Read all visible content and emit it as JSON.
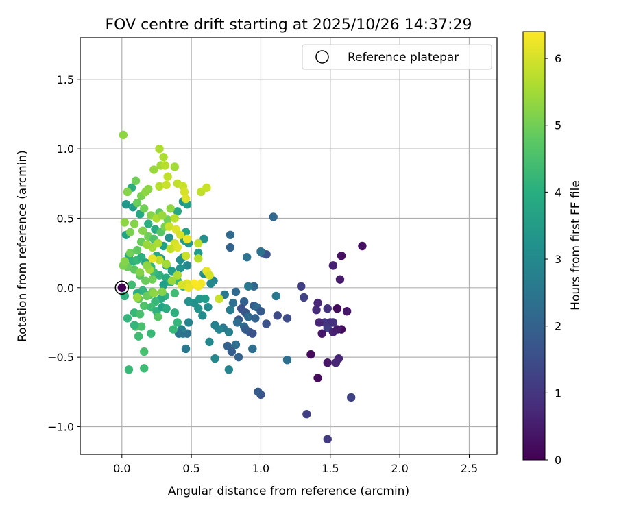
{
  "chart_data": {
    "type": "scatter",
    "title": "FOV centre drift starting at 2025/10/26 14:37:29",
    "xlabel": "Angular distance from reference (arcmin)",
    "ylabel": "Rotation from reference (arcmin)",
    "xlim": [
      -0.3,
      2.7
    ],
    "ylim": [
      -1.2,
      1.8
    ],
    "xticks": [
      0.0,
      0.5,
      1.0,
      1.5,
      2.0,
      2.5
    ],
    "xtick_labels": [
      "0.0",
      "0.5",
      "1.0",
      "1.5",
      "2.0",
      "2.5"
    ],
    "yticks": [
      -1.0,
      -0.5,
      0.0,
      0.5,
      1.0,
      1.5
    ],
    "ytick_labels": [
      "−1.0",
      "−0.5",
      "0.0",
      "0.5",
      "1.0",
      "1.5"
    ],
    "grid": true,
    "colorbar": {
      "label": "Hours from first FF file",
      "range": [
        0,
        6.4
      ],
      "ticks": [
        0,
        1,
        2,
        3,
        4,
        5,
        6
      ],
      "tick_labels": [
        "0",
        "1",
        "2",
        "3",
        "4",
        "5",
        "6"
      ],
      "colormap": "viridis"
    },
    "legend": {
      "label": "Reference platepar",
      "position": "top-right"
    },
    "reference_point": {
      "x": 0.0,
      "y": 0.0
    },
    "points": [
      {
        "x": 0.0,
        "y": 0.0,
        "t": 0.0
      },
      {
        "x": 1.73,
        "y": 0.3,
        "t": 0.3
      },
      {
        "x": 1.58,
        "y": 0.23,
        "t": 0.3
      },
      {
        "x": 1.52,
        "y": 0.16,
        "t": 0.6
      },
      {
        "x": 1.57,
        "y": 0.06,
        "t": 0.5
      },
      {
        "x": 1.62,
        "y": -0.17,
        "t": 0.4
      },
      {
        "x": 1.55,
        "y": -0.15,
        "t": 0.2
      },
      {
        "x": 1.58,
        "y": -0.3,
        "t": 0.2
      },
      {
        "x": 1.5,
        "y": -0.25,
        "t": 0.8
      },
      {
        "x": 1.48,
        "y": -0.29,
        "t": 1.2
      },
      {
        "x": 1.46,
        "y": -0.25,
        "t": 1.0
      },
      {
        "x": 1.52,
        "y": -0.32,
        "t": 0.6
      },
      {
        "x": 1.55,
        "y": -0.3,
        "t": 0.5
      },
      {
        "x": 1.44,
        "y": -0.33,
        "t": 0.4
      },
      {
        "x": 1.42,
        "y": -0.25,
        "t": 0.7
      },
      {
        "x": 1.4,
        "y": -0.16,
        "t": 0.8
      },
      {
        "x": 1.41,
        "y": -0.11,
        "t": 0.7
      },
      {
        "x": 1.48,
        "y": -0.15,
        "t": 0.9
      },
      {
        "x": 1.52,
        "y": -0.25,
        "t": 0.9
      },
      {
        "x": 1.36,
        "y": -0.48,
        "t": 0.2
      },
      {
        "x": 1.41,
        "y": -0.65,
        "t": 0.2
      },
      {
        "x": 1.48,
        "y": -0.54,
        "t": 0.4
      },
      {
        "x": 1.54,
        "y": -0.54,
        "t": 0.7
      },
      {
        "x": 1.56,
        "y": -0.51,
        "t": 0.7
      },
      {
        "x": 1.65,
        "y": -0.79,
        "t": 1.3
      },
      {
        "x": 1.48,
        "y": -1.09,
        "t": 1.1
      },
      {
        "x": 1.33,
        "y": -0.91,
        "t": 1.2
      },
      {
        "x": 1.29,
        "y": 0.01,
        "t": 1.2
      },
      {
        "x": 1.31,
        "y": -0.07,
        "t": 1.3
      },
      {
        "x": 1.09,
        "y": 0.51,
        "t": 2.1
      },
      {
        "x": 1.01,
        "y": 0.25,
        "t": 1.8
      },
      {
        "x": 1.04,
        "y": 0.24,
        "t": 1.6
      },
      {
        "x": 1.0,
        "y": 0.26,
        "t": 2.4
      },
      {
        "x": 1.19,
        "y": -0.22,
        "t": 1.5
      },
      {
        "x": 1.12,
        "y": -0.2,
        "t": 1.4
      },
      {
        "x": 1.04,
        "y": -0.26,
        "t": 1.6
      },
      {
        "x": 1.11,
        "y": -0.06,
        "t": 2.6
      },
      {
        "x": 1.19,
        "y": -0.52,
        "t": 2.3
      },
      {
        "x": 1.0,
        "y": -0.77,
        "t": 1.6
      },
      {
        "x": 0.98,
        "y": -0.75,
        "t": 1.8
      },
      {
        "x": 0.78,
        "y": 0.38,
        "t": 2.2
      },
      {
        "x": 0.78,
        "y": 0.29,
        "t": 2.0
      },
      {
        "x": 0.9,
        "y": 0.22,
        "t": 2.4
      },
      {
        "x": 0.95,
        "y": 0.01,
        "t": 2.1
      },
      {
        "x": 0.91,
        "y": 0.01,
        "t": 2.6
      },
      {
        "x": 0.82,
        "y": -0.03,
        "t": 2.2
      },
      {
        "x": 0.74,
        "y": -0.05,
        "t": 2.6
      },
      {
        "x": 0.8,
        "y": -0.11,
        "t": 2.4
      },
      {
        "x": 0.88,
        "y": -0.1,
        "t": 2.0
      },
      {
        "x": 0.95,
        "y": -0.13,
        "t": 1.8
      },
      {
        "x": 0.97,
        "y": -0.14,
        "t": 2.2
      },
      {
        "x": 0.86,
        "y": -0.15,
        "t": 1.6
      },
      {
        "x": 0.89,
        "y": -0.18,
        "t": 1.7
      },
      {
        "x": 0.84,
        "y": -0.23,
        "t": 1.7
      },
      {
        "x": 0.91,
        "y": -0.21,
        "t": 2.2
      },
      {
        "x": 1.0,
        "y": -0.17,
        "t": 1.8
      },
      {
        "x": 0.96,
        "y": -0.22,
        "t": 2.0
      },
      {
        "x": 0.83,
        "y": -0.25,
        "t": 2.3
      },
      {
        "x": 0.88,
        "y": -0.28,
        "t": 2.2
      },
      {
        "x": 0.89,
        "y": -0.3,
        "t": 1.9
      },
      {
        "x": 0.92,
        "y": -0.32,
        "t": 1.8
      },
      {
        "x": 0.94,
        "y": -0.33,
        "t": 1.6
      },
      {
        "x": 0.77,
        "y": -0.32,
        "t": 2.8
      },
      {
        "x": 0.73,
        "y": -0.29,
        "t": 2.6
      },
      {
        "x": 0.7,
        "y": -0.3,
        "t": 2.9
      },
      {
        "x": 0.67,
        "y": -0.27,
        "t": 2.8
      },
      {
        "x": 0.78,
        "y": -0.16,
        "t": 2.7
      },
      {
        "x": 0.82,
        "y": -0.41,
        "t": 2.3
      },
      {
        "x": 0.76,
        "y": -0.42,
        "t": 2.0
      },
      {
        "x": 0.79,
        "y": -0.46,
        "t": 1.9
      },
      {
        "x": 0.84,
        "y": -0.5,
        "t": 2.0
      },
      {
        "x": 0.94,
        "y": -0.44,
        "t": 2.3
      },
      {
        "x": 0.77,
        "y": -0.59,
        "t": 2.9
      },
      {
        "x": 0.67,
        "y": -0.51,
        "t": 3.0
      },
      {
        "x": 0.63,
        "y": -0.39,
        "t": 3.0
      },
      {
        "x": 0.46,
        "y": -0.44,
        "t": 2.6
      },
      {
        "x": 0.44,
        "y": -0.33,
        "t": 2.7
      },
      {
        "x": 0.47,
        "y": -0.33,
        "t": 2.4
      },
      {
        "x": 0.43,
        "y": -0.3,
        "t": 2.8
      },
      {
        "x": 0.41,
        "y": -0.33,
        "t": 2.5
      },
      {
        "x": 0.48,
        "y": -0.25,
        "t": 2.9
      },
      {
        "x": 0.58,
        "y": -0.2,
        "t": 3.1
      },
      {
        "x": 0.55,
        "y": -0.15,
        "t": 3.3
      },
      {
        "x": 0.62,
        "y": -0.14,
        "t": 3.1
      },
      {
        "x": 0.52,
        "y": -0.11,
        "t": 3.2
      },
      {
        "x": 0.48,
        "y": -0.1,
        "t": 3.3
      },
      {
        "x": 0.56,
        "y": -0.08,
        "t": 3.4
      },
      {
        "x": 0.6,
        "y": -0.08,
        "t": 3.5
      },
      {
        "x": 0.66,
        "y": 0.05,
        "t": 2.9
      },
      {
        "x": 0.64,
        "y": 0.03,
        "t": 3.0
      },
      {
        "x": 0.59,
        "y": 0.1,
        "t": 3.2
      },
      {
        "x": 0.61,
        "y": 0.12,
        "t": 3.4
      },
      {
        "x": 0.59,
        "y": 0.35,
        "t": 3.2
      },
      {
        "x": 0.55,
        "y": 0.25,
        "t": 3.5
      },
      {
        "x": 0.48,
        "y": 0.32,
        "t": 3.4
      },
      {
        "x": 0.45,
        "y": 0.34,
        "t": 3.6
      },
      {
        "x": 0.44,
        "y": 0.62,
        "t": 3.3
      },
      {
        "x": 0.47,
        "y": 0.6,
        "t": 3.6
      },
      {
        "x": 0.4,
        "y": 0.55,
        "t": 3.8
      },
      {
        "x": 0.46,
        "y": 0.4,
        "t": 3.7
      },
      {
        "x": 0.44,
        "y": 0.22,
        "t": 3.6
      },
      {
        "x": 0.42,
        "y": 0.2,
        "t": 3.1
      },
      {
        "x": 0.47,
        "y": 0.16,
        "t": 3.0
      },
      {
        "x": 0.42,
        "y": 0.14,
        "t": 3.3
      },
      {
        "x": 0.36,
        "y": 0.12,
        "t": 3.5
      },
      {
        "x": 0.32,
        "y": 0.16,
        "t": 3.7
      },
      {
        "x": 0.28,
        "y": 0.21,
        "t": 3.4
      },
      {
        "x": 0.25,
        "y": 0.23,
        "t": 3.8
      },
      {
        "x": 0.3,
        "y": 0.3,
        "t": 3.6
      },
      {
        "x": 0.34,
        "y": 0.36,
        "t": 3.2
      },
      {
        "x": 0.24,
        "y": 0.42,
        "t": 3.9
      },
      {
        "x": 0.19,
        "y": 0.46,
        "t": 4.0
      },
      {
        "x": 0.13,
        "y": 0.53,
        "t": 3.8
      },
      {
        "x": 0.08,
        "y": 0.58,
        "t": 3.5
      },
      {
        "x": 0.03,
        "y": 0.6,
        "t": 3.4
      },
      {
        "x": 0.07,
        "y": 0.72,
        "t": 4.0
      },
      {
        "x": 0.03,
        "y": 0.38,
        "t": 3.7
      },
      {
        "x": 0.05,
        "y": 0.23,
        "t": 3.9
      },
      {
        "x": 0.08,
        "y": 0.19,
        "t": 4.1
      },
      {
        "x": 0.11,
        "y": 0.2,
        "t": 4.3
      },
      {
        "x": 0.14,
        "y": 0.22,
        "t": 4.0
      },
      {
        "x": 0.17,
        "y": 0.18,
        "t": 3.8
      },
      {
        "x": 0.21,
        "y": 0.15,
        "t": 4.2
      },
      {
        "x": 0.23,
        "y": 0.11,
        "t": 4.4
      },
      {
        "x": 0.27,
        "y": 0.09,
        "t": 4.1
      },
      {
        "x": 0.32,
        "y": 0.07,
        "t": 3.9
      },
      {
        "x": 0.35,
        "y": 0.04,
        "t": 4.0
      },
      {
        "x": 0.3,
        "y": 0.02,
        "t": 3.6
      },
      {
        "x": 0.4,
        "y": 0.05,
        "t": 4.3
      },
      {
        "x": 0.44,
        "y": 0.01,
        "t": 4.2
      },
      {
        "x": 0.38,
        "y": -0.04,
        "t": 4.4
      },
      {
        "x": 0.31,
        "y": -0.06,
        "t": 4.1
      },
      {
        "x": 0.28,
        "y": -0.08,
        "t": 3.9
      },
      {
        "x": 0.24,
        "y": -0.1,
        "t": 4.3
      },
      {
        "x": 0.2,
        "y": -0.05,
        "t": 4.5
      },
      {
        "x": 0.15,
        "y": -0.02,
        "t": 4.2
      },
      {
        "x": 0.11,
        "y": -0.04,
        "t": 4.0
      },
      {
        "x": 0.07,
        "y": 0.02,
        "t": 4.4
      },
      {
        "x": 0.02,
        "y": -0.06,
        "t": 4.1
      },
      {
        "x": 0.04,
        "y": -0.22,
        "t": 4.2
      },
      {
        "x": 0.09,
        "y": -0.18,
        "t": 4.3
      },
      {
        "x": 0.13,
        "y": -0.19,
        "t": 4.5
      },
      {
        "x": 0.16,
        "y": -0.13,
        "t": 4.6
      },
      {
        "x": 0.21,
        "y": -0.14,
        "t": 4.4
      },
      {
        "x": 0.25,
        "y": -0.17,
        "t": 4.1
      },
      {
        "x": 0.29,
        "y": -0.14,
        "t": 3.7
      },
      {
        "x": 0.32,
        "y": -0.15,
        "t": 3.9
      },
      {
        "x": 0.38,
        "y": -0.18,
        "t": 4.0
      },
      {
        "x": 0.4,
        "y": -0.25,
        "t": 4.2
      },
      {
        "x": 0.37,
        "y": -0.3,
        "t": 4.3
      },
      {
        "x": 0.26,
        "y": -0.21,
        "t": 4.7
      },
      {
        "x": 0.21,
        "y": -0.33,
        "t": 4.3
      },
      {
        "x": 0.14,
        "y": -0.28,
        "t": 4.5
      },
      {
        "x": 0.12,
        "y": -0.35,
        "t": 4.4
      },
      {
        "x": 0.1,
        "y": -0.28,
        "t": 4.6
      },
      {
        "x": 0.16,
        "y": -0.46,
        "t": 4.5
      },
      {
        "x": 0.16,
        "y": -0.58,
        "t": 4.4
      },
      {
        "x": 0.05,
        "y": -0.59,
        "t": 4.3
      },
      {
        "x": 0.09,
        "y": -0.27,
        "t": 4.2
      },
      {
        "x": 0.12,
        "y": -0.08,
        "t": 4.8
      },
      {
        "x": 0.18,
        "y": -0.06,
        "t": 4.9
      },
      {
        "x": 0.22,
        "y": -0.03,
        "t": 5.0
      },
      {
        "x": 0.17,
        "y": 0.05,
        "t": 4.9
      },
      {
        "x": 0.13,
        "y": 0.09,
        "t": 4.7
      },
      {
        "x": 0.09,
        "y": 0.13,
        "t": 4.8
      },
      {
        "x": 0.04,
        "y": 0.15,
        "t": 4.9
      },
      {
        "x": 0.01,
        "y": 0.16,
        "t": 5.1
      },
      {
        "x": 0.02,
        "y": 0.19,
        "t": 5.2
      },
      {
        "x": 0.06,
        "y": 0.25,
        "t": 5.0
      },
      {
        "x": 0.11,
        "y": 0.27,
        "t": 4.8
      },
      {
        "x": 0.14,
        "y": 0.33,
        "t": 4.9
      },
      {
        "x": 0.19,
        "y": 0.37,
        "t": 5.0
      },
      {
        "x": 0.23,
        "y": 0.35,
        "t": 4.6
      },
      {
        "x": 0.28,
        "y": 0.4,
        "t": 4.7
      },
      {
        "x": 0.31,
        "y": 0.44,
        "t": 5.1
      },
      {
        "x": 0.33,
        "y": 0.49,
        "t": 5.0
      },
      {
        "x": 0.27,
        "y": 0.54,
        "t": 4.8
      },
      {
        "x": 0.21,
        "y": 0.52,
        "t": 5.2
      },
      {
        "x": 0.16,
        "y": 0.57,
        "t": 5.0
      },
      {
        "x": 0.11,
        "y": 0.61,
        "t": 4.9
      },
      {
        "x": 0.14,
        "y": 0.66,
        "t": 5.1
      },
      {
        "x": 0.1,
        "y": 0.77,
        "t": 5.0
      },
      {
        "x": 0.04,
        "y": 0.69,
        "t": 5.2
      },
      {
        "x": 0.02,
        "y": 0.47,
        "t": 5.3
      },
      {
        "x": 0.06,
        "y": 0.4,
        "t": 5.1
      },
      {
        "x": 0.09,
        "y": 0.46,
        "t": 5.2
      },
      {
        "x": 0.17,
        "y": 0.69,
        "t": 5.3
      },
      {
        "x": 0.23,
        "y": 0.85,
        "t": 5.4
      },
      {
        "x": 0.19,
        "y": 0.71,
        "t": 5.3
      },
      {
        "x": 0.28,
        "y": 0.88,
        "t": 5.5
      },
      {
        "x": 0.3,
        "y": 0.94,
        "t": 5.6
      },
      {
        "x": 0.27,
        "y": 1.0,
        "t": 5.6
      },
      {
        "x": 0.31,
        "y": 0.88,
        "t": 5.7
      },
      {
        "x": 0.38,
        "y": 0.87,
        "t": 5.5
      },
      {
        "x": 0.33,
        "y": 0.8,
        "t": 5.8
      },
      {
        "x": 0.27,
        "y": 0.73,
        "t": 5.7
      },
      {
        "x": 0.32,
        "y": 0.74,
        "t": 5.9
      },
      {
        "x": 0.4,
        "y": 0.75,
        "t": 5.8
      },
      {
        "x": 0.44,
        "y": 0.73,
        "t": 5.9
      },
      {
        "x": 0.45,
        "y": 0.69,
        "t": 6.0
      },
      {
        "x": 0.46,
        "y": 0.64,
        "t": 6.1
      },
      {
        "x": 0.57,
        "y": 0.69,
        "t": 5.8
      },
      {
        "x": 0.61,
        "y": 0.72,
        "t": 5.9
      },
      {
        "x": 0.01,
        "y": 1.1,
        "t": 5.3
      },
      {
        "x": 0.25,
        "y": 0.5,
        "t": 5.6
      },
      {
        "x": 0.29,
        "y": 0.52,
        "t": 5.4
      },
      {
        "x": 0.35,
        "y": 0.57,
        "t": 5.3
      },
      {
        "x": 0.38,
        "y": 0.5,
        "t": 5.7
      },
      {
        "x": 0.34,
        "y": 0.44,
        "t": 5.9
      },
      {
        "x": 0.39,
        "y": 0.42,
        "t": 6.1
      },
      {
        "x": 0.42,
        "y": 0.38,
        "t": 6.0
      },
      {
        "x": 0.47,
        "y": 0.35,
        "t": 6.2
      },
      {
        "x": 0.38,
        "y": 0.32,
        "t": 6.0
      },
      {
        "x": 0.35,
        "y": 0.28,
        "t": 5.8
      },
      {
        "x": 0.4,
        "y": 0.29,
        "t": 6.1
      },
      {
        "x": 0.46,
        "y": 0.23,
        "t": 5.9
      },
      {
        "x": 0.55,
        "y": 0.32,
        "t": 5.8
      },
      {
        "x": 0.55,
        "y": 0.21,
        "t": 5.7
      },
      {
        "x": 0.61,
        "y": 0.12,
        "t": 6.2
      },
      {
        "x": 0.63,
        "y": 0.09,
        "t": 6.0
      },
      {
        "x": 0.57,
        "y": 0.03,
        "t": 6.3
      },
      {
        "x": 0.55,
        "y": 0.01,
        "t": 6.3
      },
      {
        "x": 0.52,
        "y": 0.03,
        "t": 6.4
      },
      {
        "x": 0.47,
        "y": 0.03,
        "t": 6.1
      },
      {
        "x": 0.48,
        "y": 0.0,
        "t": 6.2
      },
      {
        "x": 0.43,
        "y": 0.02,
        "t": 6.0
      },
      {
        "x": 0.4,
        "y": 0.09,
        "t": 5.6
      },
      {
        "x": 0.36,
        "y": 0.05,
        "t": 5.4
      },
      {
        "x": 0.32,
        "y": 0.17,
        "t": 5.5
      },
      {
        "x": 0.27,
        "y": 0.2,
        "t": 5.8
      },
      {
        "x": 0.22,
        "y": 0.21,
        "t": 6.2
      },
      {
        "x": 0.2,
        "y": 0.13,
        "t": 5.5
      },
      {
        "x": 0.18,
        "y": 0.16,
        "t": 5.3
      },
      {
        "x": 0.13,
        "y": 0.11,
        "t": 5.2
      },
      {
        "x": 0.26,
        "y": 0.32,
        "t": 5.6
      },
      {
        "x": 0.22,
        "y": 0.29,
        "t": 5.5
      },
      {
        "x": 0.18,
        "y": 0.31,
        "t": 5.4
      },
      {
        "x": 0.23,
        "y": -0.04,
        "t": 5.3
      },
      {
        "x": 0.29,
        "y": -0.03,
        "t": 5.2
      },
      {
        "x": 0.11,
        "y": -0.07,
        "t": 5.4
      },
      {
        "x": 0.7,
        "y": -0.08,
        "t": 5.9
      },
      {
        "x": 0.22,
        "y": 0.06,
        "t": 5.0
      },
      {
        "x": 0.15,
        "y": 0.41,
        "t": 5.2
      }
    ]
  }
}
